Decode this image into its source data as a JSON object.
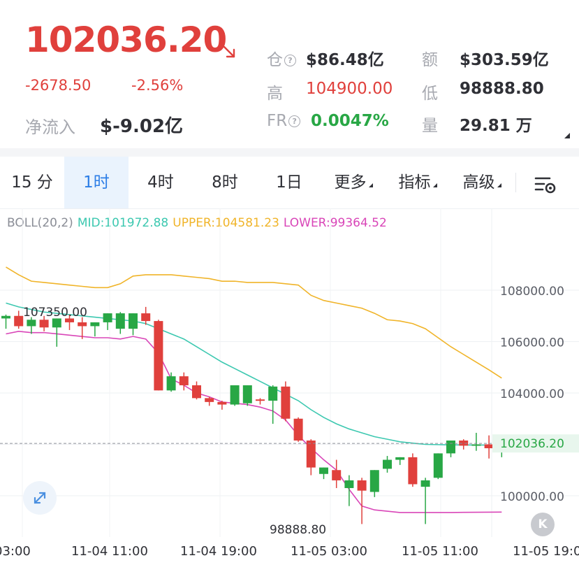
{
  "ticker": {
    "price": "102036.20",
    "change_abs": "-2678.50",
    "change_pct": "-2.56%",
    "net_inflow_label": "净流入",
    "net_inflow_value": "$-9.02亿"
  },
  "stats": {
    "oi_label": "仓",
    "oi_value": "$86.48亿",
    "turnover_label": "额",
    "turnover_value": "$303.59亿",
    "high_label": "高",
    "high_value": "104900.00",
    "low_label": "低",
    "low_value": "98888.80",
    "fr_label": "FR",
    "fr_value": "0.0047%",
    "volume_label": "量",
    "volume_value": "29.81 万",
    "info_glyph": "?"
  },
  "tabs": [
    {
      "label": "15 分"
    },
    {
      "label": "1时",
      "active": true
    },
    {
      "label": "4时"
    },
    {
      "label": "8时"
    },
    {
      "label": "1日"
    },
    {
      "label": "更多"
    },
    {
      "label": "指标"
    },
    {
      "label": "高级"
    }
  ],
  "icons": {
    "trend": "arrow-down-right-icon",
    "settings": "chart-settings-icon",
    "expand": "expand-icon",
    "k_button": "K"
  },
  "colors": {
    "up": "#e0403c",
    "down_green": "#28a745",
    "accent_blue": "#2d7ee6",
    "mid": "#3cc8b0",
    "upper": "#f0b429",
    "lower": "#d946b8"
  },
  "boll": {
    "name": "BOLL(20,2)",
    "mid_label": "MID:101972.88",
    "upper_label": "UPPER:104581.23",
    "lower_label": "LOWER:99364.52"
  },
  "chart_data": {
    "type": "candlestick",
    "y_ticks": [
      "108000.00",
      "106000.00",
      "104000.00",
      "100000.00"
    ],
    "y_ticks_values": [
      108000,
      106000,
      104000,
      100000
    ],
    "current_price_label": "102036.20",
    "current_price": 102036.2,
    "high_annotation": "107350.00",
    "high_value": 107350,
    "low_annotation": "98888.80",
    "low_value": 98888.8,
    "ylim": [
      98000,
      109500
    ],
    "x_ticks": [
      "03:00",
      "11-04 11:00",
      "11-04 19:00",
      "11-05 03:00",
      "11-05 11:00",
      "11-05 19:0"
    ],
    "candles": [
      [
        106900,
        107050,
        106500,
        107000
      ],
      [
        107000,
        107200,
        106500,
        106600
      ],
      [
        106600,
        106950,
        106300,
        106850
      ],
      [
        106850,
        107000,
        106400,
        106550
      ],
      [
        106550,
        106900,
        105800,
        106900
      ],
      [
        106900,
        107050,
        106450,
        106750
      ],
      [
        106750,
        106950,
        106100,
        106600
      ],
      [
        106600,
        106750,
        106200,
        106750
      ],
      [
        106750,
        107100,
        106450,
        107100
      ],
      [
        106500,
        107150,
        106300,
        107100
      ],
      [
        106500,
        107100,
        106250,
        107100
      ],
      [
        107100,
        107350,
        106650,
        106800
      ],
      [
        106800,
        106850,
        104100,
        104100
      ],
      [
        104100,
        104800,
        104050,
        104650
      ],
      [
        104650,
        104800,
        104100,
        104300
      ],
      [
        104300,
        104450,
        103750,
        103800
      ],
      [
        103800,
        103850,
        103500,
        103650
      ],
      [
        103650,
        103700,
        103350,
        103550
      ],
      [
        103550,
        104300,
        103500,
        104300
      ],
      [
        103600,
        104300,
        103500,
        104300
      ],
      [
        103750,
        103800,
        103550,
        103700
      ],
      [
        103700,
        104300,
        102800,
        104250
      ],
      [
        104250,
        104450,
        102900,
        103000
      ],
      [
        103000,
        103050,
        102100,
        102150
      ],
      [
        102150,
        102200,
        100800,
        101100
      ],
      [
        100850,
        101100,
        100650,
        101100
      ],
      [
        101000,
        101400,
        100300,
        100600
      ],
      [
        100300,
        100800,
        99600,
        100600
      ],
      [
        100600,
        100700,
        98900,
        100200
      ],
      [
        100150,
        101000,
        99950,
        101000
      ],
      [
        101050,
        101550,
        100900,
        101400
      ],
      [
        101400,
        101500,
        101200,
        101500
      ],
      [
        101500,
        101650,
        100350,
        100450
      ],
      [
        100350,
        100700,
        98900,
        100600
      ],
      [
        100700,
        101650,
        100650,
        101650
      ],
      [
        101650,
        102150,
        101500,
        102150
      ],
      [
        102150,
        102200,
        101800,
        101950
      ],
      [
        101950,
        102450,
        101750,
        102000
      ],
      [
        102000,
        102350,
        101450,
        101850
      ],
      [
        101850,
        102300,
        101500,
        102036.2
      ]
    ],
    "upper": [
      108900,
      108600,
      108350,
      108300,
      108250,
      108200,
      108150,
      108100,
      108100,
      108250,
      108550,
      108600,
      108600,
      108600,
      108550,
      108500,
      108450,
      108350,
      108350,
      108300,
      108300,
      108300,
      108250,
      108200,
      107800,
      107600,
      107500,
      107400,
      107300,
      107100,
      106850,
      106800,
      106700,
      106500,
      106150,
      105800,
      105500,
      105200,
      104900,
      104581.23
    ],
    "mid": [
      107500,
      107350,
      107250,
      107150,
      107100,
      107050,
      107000,
      106950,
      106900,
      106850,
      106800,
      106700,
      106500,
      106300,
      106100,
      105800,
      105500,
      105200,
      104950,
      104700,
      104450,
      104200,
      103950,
      103700,
      103350,
      103050,
      102800,
      102600,
      102450,
      102300,
      102200,
      102100,
      102050,
      102000,
      101990,
      101980,
      101976,
      101974,
      101973,
      101972.88
    ],
    "lower": [
      106300,
      106400,
      106350,
      106350,
      106300,
      106250,
      106200,
      106150,
      106150,
      106100,
      106200,
      106100,
      105550,
      104550,
      104300,
      104000,
      103850,
      103650,
      103600,
      103550,
      103450,
      103300,
      102950,
      102350,
      101850,
      101400,
      101000,
      100250,
      99600,
      99450,
      99400,
      99350,
      99350,
      99350,
      99350,
      99350,
      99355,
      99360,
      99362,
      99364.52
    ]
  }
}
